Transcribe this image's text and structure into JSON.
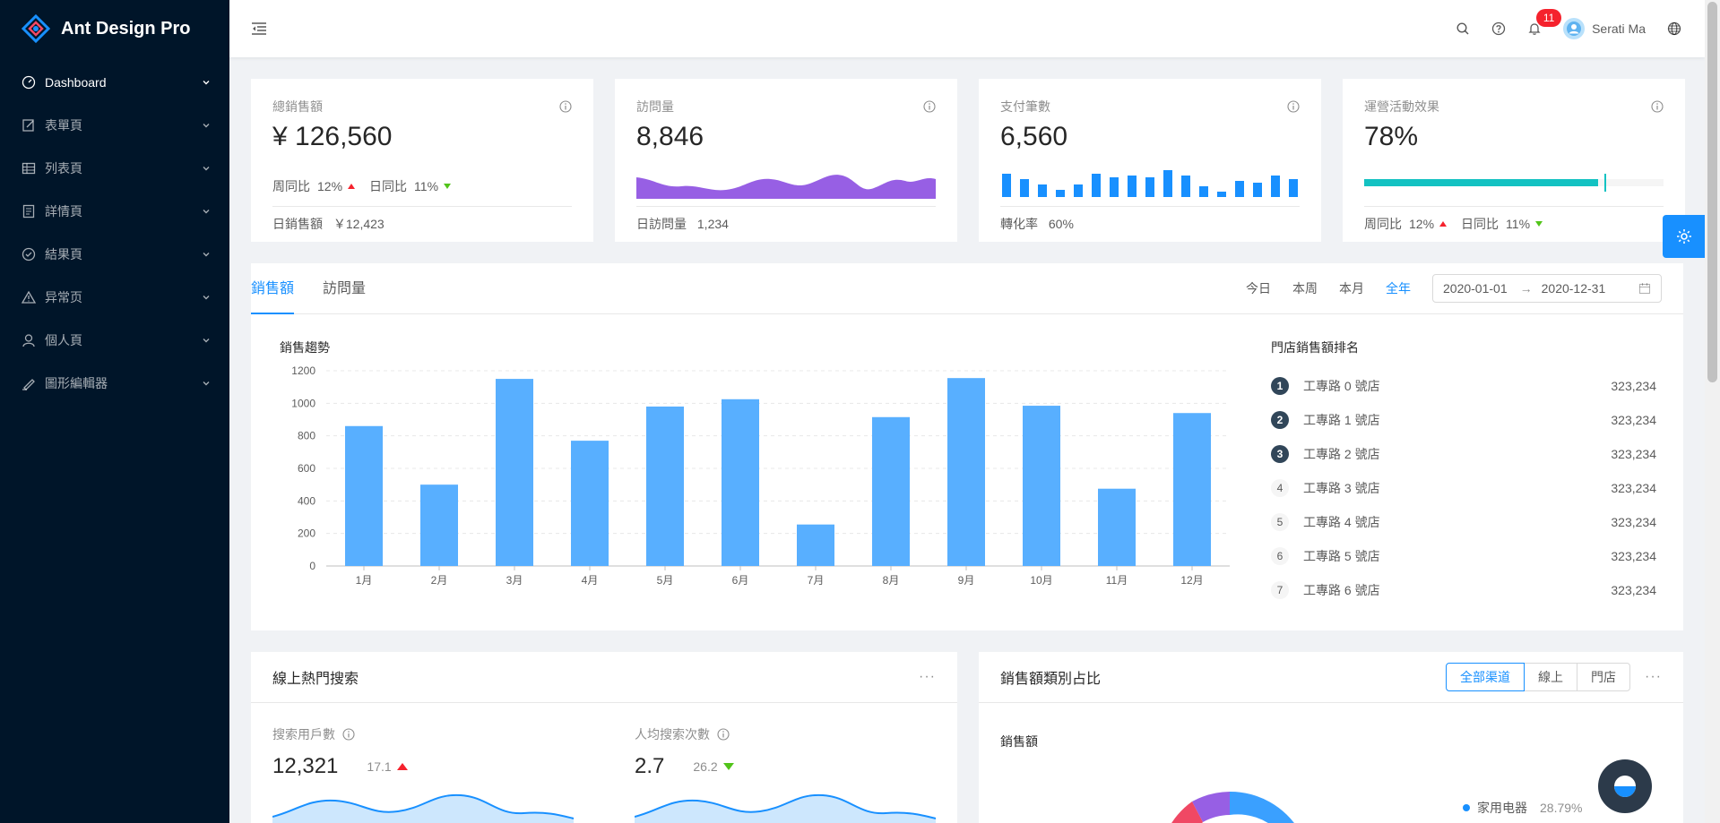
{
  "app": {
    "title": "Ant Design Pro"
  },
  "sidebar": {
    "items": [
      {
        "label": "Dashboard",
        "icon": "dashboard-icon",
        "active": true
      },
      {
        "label": "表單頁",
        "icon": "form-icon"
      },
      {
        "label": "列表頁",
        "icon": "table-icon"
      },
      {
        "label": "詳情頁",
        "icon": "profile-icon"
      },
      {
        "label": "結果頁",
        "icon": "check-circle-icon"
      },
      {
        "label": "异常页",
        "icon": "warning-icon"
      },
      {
        "label": "個人頁",
        "icon": "user-icon"
      },
      {
        "label": "圖形編輯器",
        "icon": "highlight-icon"
      }
    ]
  },
  "header": {
    "notification_count": "11",
    "user_name": "Serati Ma"
  },
  "stats": {
    "total_sales": {
      "title": "總銷售額",
      "value": "¥ 126,560",
      "week_label": "周同比",
      "week_value": "12%",
      "day_label": "日同比",
      "day_value": "11%",
      "footer_label": "日銷售額",
      "footer_value": "￥12,423"
    },
    "visits": {
      "title": "訪問量",
      "value": "8,846",
      "footer_label": "日訪問量",
      "footer_value": "1,234"
    },
    "payments": {
      "title": "支付筆數",
      "value": "6,560",
      "footer_label": "轉化率",
      "footer_value": "60%"
    },
    "operations": {
      "title": "運營活動效果",
      "value": "78%",
      "progress": 78,
      "week_label": "周同比",
      "week_value": "12%",
      "day_label": "日同比",
      "day_value": "11%"
    }
  },
  "sales": {
    "tabs": [
      "銷售額",
      "訪問量"
    ],
    "ranges": [
      "今日",
      "本周",
      "本月",
      "全年"
    ],
    "active_range": "全年",
    "date_start": "2020-01-01",
    "date_end": "2020-12-31",
    "chart_title": "銷售趨勢",
    "rank_title": "門店銷售額排名",
    "rankings": [
      {
        "rank": "1",
        "name": "工專路 0 號店",
        "value": "323,234"
      },
      {
        "rank": "2",
        "name": "工專路 1 號店",
        "value": "323,234"
      },
      {
        "rank": "3",
        "name": "工專路 2 號店",
        "value": "323,234"
      },
      {
        "rank": "4",
        "name": "工專路 3 號店",
        "value": "323,234"
      },
      {
        "rank": "5",
        "name": "工專路 4 號店",
        "value": "323,234"
      },
      {
        "rank": "6",
        "name": "工專路 5 號店",
        "value": "323,234"
      },
      {
        "rank": "7",
        "name": "工專路 6 號店",
        "value": "323,234"
      }
    ]
  },
  "chart_data": {
    "type": "bar",
    "title": "銷售趨勢",
    "categories": [
      "1月",
      "2月",
      "3月",
      "4月",
      "5月",
      "6月",
      "7月",
      "8月",
      "9月",
      "10月",
      "11月",
      "12月"
    ],
    "values": [
      860,
      500,
      1150,
      770,
      980,
      1025,
      255,
      915,
      1155,
      985,
      475,
      940
    ],
    "yticks": [
      0,
      200,
      400,
      600,
      800,
      1000,
      1200
    ],
    "ylim": [
      0,
      1200
    ],
    "color": "#58afff"
  },
  "search": {
    "title": "線上熱門搜索",
    "users_label": "搜索用戶數",
    "users_value": "12,321",
    "users_change": "17.1",
    "per_user_label": "人均搜索次數",
    "per_user_value": "2.7",
    "per_user_change": "26.2"
  },
  "category": {
    "title": "銷售額類別占比",
    "channels": [
      "全部渠道",
      "線上",
      "門店"
    ],
    "active_channel": "全部渠道",
    "sub_title": "銷售額",
    "legend_label": "家用电器",
    "legend_value": "28.79%"
  },
  "colors": {
    "primary": "#1890ff",
    "sider": "#001529",
    "area": "#975fe4",
    "teal": "#13c2c2",
    "up": "#f5222d",
    "down": "#52c41a"
  }
}
